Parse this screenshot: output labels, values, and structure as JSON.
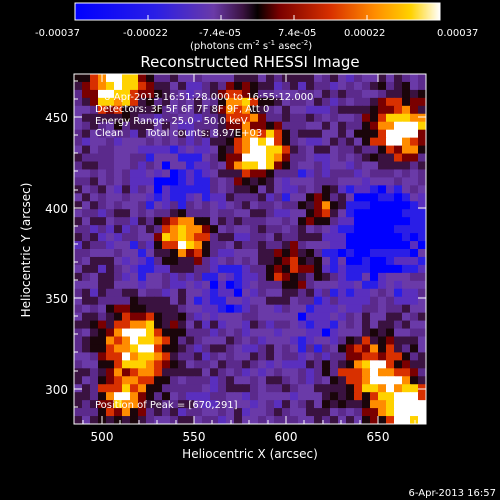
{
  "colorbar": {
    "tick_labels": [
      "-0.00037",
      "-0.00022",
      "-7.4e-05",
      "7.4e-05",
      "0.00022",
      "0.00037"
    ],
    "unit_main": "(photons cm",
    "unit_sup1": "-2",
    "unit_mid1": " s",
    "unit_sup2": "-1",
    "unit_mid2": " asec",
    "unit_sup3": "-2",
    "unit_end": ")",
    "range": [
      -0.00037,
      0.00037
    ]
  },
  "title": "Reconstructed RHESSI Image",
  "info": {
    "time_range": "6-Apr-2013 16:51:28.000 to 16:55:12.000",
    "detectors": "Detectors: 3F 5F 6F 7F 8F 9F, Att 0",
    "energy_range": "Energy Range: 25.0 - 50.0 keV",
    "method": "Clean",
    "total_counts": "Total counts: 8.97E+03",
    "peak": "Position of Peak = [670,291]"
  },
  "axes": {
    "xlabel": "Heliocentric X (arcsec)",
    "ylabel": "Heliocentric Y (arcsec)",
    "xticks": [
      "500",
      "550",
      "600",
      "650"
    ],
    "yticks": [
      "450",
      "400",
      "350",
      "300"
    ],
    "xlim": [
      486,
      678
    ],
    "ylim": [
      281,
      475
    ]
  },
  "footer_date": "6-Apr-2013 16:57",
  "colors": {
    "background": "#000000",
    "foreground": "#ffffff",
    "colormap": [
      "#0000ff",
      "#2a1ee6",
      "#5a2fbe",
      "#6a3aa8",
      "#5b2a8c",
      "#3a1240",
      "#1a050a",
      "#7a0000",
      "#d83000",
      "#ff8c00",
      "#ffd200",
      "#ffffff"
    ]
  }
}
